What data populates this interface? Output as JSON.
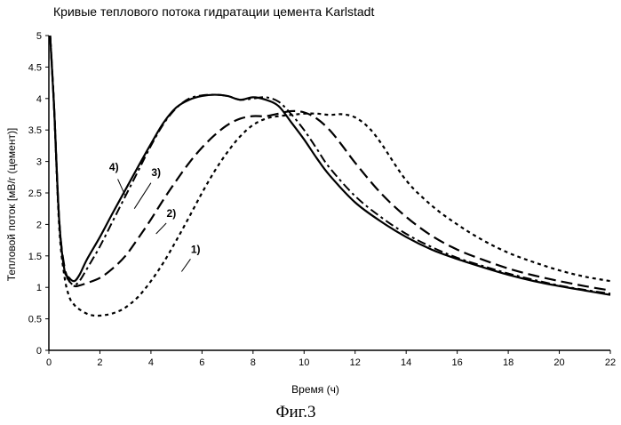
{
  "chart_data": {
    "type": "line",
    "title": "Кривые теплового потока гидратации цемента Karlstadt",
    "xlabel": "Время (ч)",
    "ylabel": "Тепловой поток [мВ/г (цемент)]",
    "xlim": [
      0,
      22
    ],
    "ylim": [
      0,
      5
    ],
    "x_ticks": [
      "0",
      "2",
      "4",
      "6",
      "8",
      "10",
      "12",
      "14",
      "16",
      "18",
      "20",
      "22"
    ],
    "y_ticks": [
      "0",
      "0.5",
      "1",
      "1.5",
      "2",
      "2.5",
      "3",
      "3.5",
      "4",
      "4.5",
      "5"
    ],
    "grid": false,
    "series": [
      {
        "name": "1)",
        "style": "dotted",
        "x": [
          0.05,
          0.2,
          0.4,
          0.6,
          0.8,
          1.0,
          1.2,
          1.5,
          1.8,
          2.2,
          2.6,
          3.0,
          3.5,
          4.0,
          4.5,
          5.0,
          5.5,
          6.0,
          6.5,
          7.0,
          7.5,
          8.0,
          8.5,
          9.0,
          9.5,
          10.0,
          10.5,
          11.0,
          11.5,
          12.0,
          12.5,
          13.0,
          14.0,
          15.0,
          16.0,
          17.0,
          18.0,
          19.0,
          20.0,
          21.0,
          22.0
        ],
        "y": [
          5.0,
          3.9,
          2.0,
          1.2,
          0.85,
          0.72,
          0.65,
          0.58,
          0.55,
          0.56,
          0.6,
          0.68,
          0.85,
          1.1,
          1.4,
          1.75,
          2.12,
          2.5,
          2.85,
          3.15,
          3.4,
          3.58,
          3.68,
          3.72,
          3.74,
          3.76,
          3.76,
          3.74,
          3.75,
          3.7,
          3.55,
          3.3,
          2.7,
          2.3,
          2.0,
          1.75,
          1.55,
          1.4,
          1.27,
          1.17,
          1.1
        ]
      },
      {
        "name": "2)",
        "style": "dashed",
        "x": [
          0.05,
          0.2,
          0.4,
          0.6,
          0.8,
          1.0,
          1.2,
          1.5,
          2.0,
          2.5,
          3.0,
          3.5,
          4.0,
          4.5,
          5.0,
          5.5,
          6.0,
          6.5,
          7.0,
          7.5,
          8.0,
          8.5,
          9.0,
          9.5,
          10.0,
          10.5,
          11.0,
          11.5,
          12.0,
          13.0,
          14.0,
          15.0,
          16.0,
          17.0,
          18.0,
          19.0,
          20.0,
          21.0,
          22.0
        ],
        "y": [
          5.0,
          3.9,
          2.1,
          1.35,
          1.1,
          1.02,
          1.03,
          1.07,
          1.15,
          1.3,
          1.5,
          1.78,
          2.08,
          2.4,
          2.7,
          2.98,
          3.22,
          3.42,
          3.58,
          3.68,
          3.72,
          3.72,
          3.76,
          3.8,
          3.78,
          3.68,
          3.5,
          3.25,
          2.98,
          2.5,
          2.12,
          1.82,
          1.6,
          1.44,
          1.3,
          1.19,
          1.1,
          1.02,
          0.95
        ]
      },
      {
        "name": "3)",
        "style": "dash-dot",
        "x": [
          0.05,
          0.2,
          0.4,
          0.6,
          0.8,
          1.0,
          1.2,
          1.5,
          2.0,
          2.5,
          3.0,
          3.5,
          4.0,
          4.5,
          5.0,
          5.5,
          6.0,
          6.5,
          7.0,
          7.5,
          8.0,
          8.5,
          9.0,
          9.5,
          10.0,
          10.5,
          11.0,
          12.0,
          13.0,
          14.0,
          15.0,
          16.0,
          17.0,
          18.0,
          19.0,
          20.0,
          21.0,
          22.0
        ],
        "y": [
          5.0,
          3.9,
          2.1,
          1.3,
          1.1,
          1.04,
          1.1,
          1.3,
          1.65,
          2.05,
          2.45,
          2.85,
          3.25,
          3.6,
          3.85,
          4.0,
          4.05,
          4.06,
          4.04,
          3.98,
          4.0,
          4.02,
          3.95,
          3.75,
          3.5,
          3.2,
          2.9,
          2.45,
          2.12,
          1.85,
          1.64,
          1.47,
          1.34,
          1.22,
          1.12,
          1.03,
          0.96,
          0.9
        ]
      },
      {
        "name": "4)",
        "style": "solid",
        "x": [
          0.05,
          0.2,
          0.4,
          0.6,
          0.8,
          1.0,
          1.2,
          1.5,
          2.0,
          2.5,
          3.0,
          3.5,
          4.0,
          4.5,
          5.0,
          5.5,
          6.0,
          6.5,
          7.0,
          7.5,
          8.0,
          8.5,
          9.0,
          9.5,
          10.0,
          10.5,
          11.0,
          12.0,
          13.0,
          14.0,
          15.0,
          16.0,
          17.0,
          18.0,
          19.0,
          20.0,
          21.0,
          22.0
        ],
        "y": [
          5.0,
          3.9,
          2.1,
          1.3,
          1.15,
          1.1,
          1.2,
          1.45,
          1.8,
          2.18,
          2.55,
          2.92,
          3.28,
          3.62,
          3.86,
          3.98,
          4.04,
          4.06,
          4.04,
          3.98,
          4.02,
          3.98,
          3.88,
          3.62,
          3.35,
          3.05,
          2.78,
          2.35,
          2.05,
          1.8,
          1.6,
          1.45,
          1.32,
          1.2,
          1.1,
          1.02,
          0.95,
          0.88
        ]
      }
    ],
    "annotations": [
      {
        "text": "4)",
        "x": 2.55,
        "y": 2.85
      },
      {
        "text": "3)",
        "x": 4.2,
        "y": 2.77
      },
      {
        "text": "2)",
        "x": 4.8,
        "y": 2.12
      },
      {
        "text": "1)",
        "x": 5.75,
        "y": 1.55
      }
    ]
  },
  "caption": "Фиг.3"
}
